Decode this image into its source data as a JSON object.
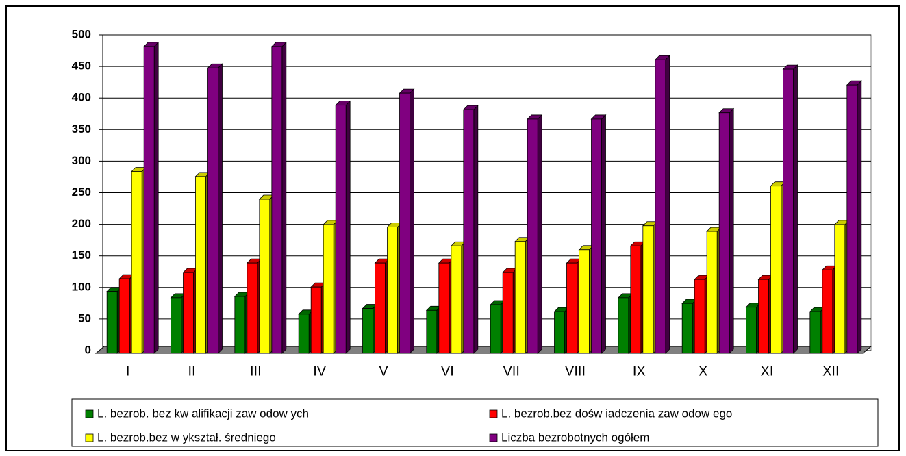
{
  "chart_data": {
    "type": "bar3d",
    "categories": [
      "I",
      "II",
      "III",
      "IV",
      "V",
      "VI",
      "VII",
      "VIII",
      "IX",
      "X",
      "XI",
      "XII"
    ],
    "series": [
      {
        "name": "L. bezrob. bez kw alifikacji zaw odow ych",
        "color": "#008000",
        "values": [
          98,
          88,
          90,
          62,
          71,
          68,
          77,
          66,
          88,
          79,
          73,
          66
        ]
      },
      {
        "name": "L. bezrob.bez dośw iadczenia zaw odow ego",
        "color": "#ff0000",
        "values": [
          118,
          128,
          143,
          105,
          143,
          143,
          128,
          143,
          170,
          117,
          117,
          132
        ]
      },
      {
        "name": "L. bezrob.bez w ykształ. średniego",
        "color": "#ffff00",
        "values": [
          288,
          280,
          244,
          204,
          200,
          170,
          177,
          164,
          202,
          193,
          265,
          204
        ]
      },
      {
        "name": "Liczba bezrobotnych ogółem",
        "color": "#800080",
        "values": [
          486,
          452,
          486,
          393,
          412,
          386,
          371,
          371,
          465,
          381,
          450,
          425
        ]
      }
    ],
    "ylim": [
      0,
      500
    ],
    "yticks": [
      0,
      50,
      100,
      150,
      200,
      250,
      300,
      350,
      400,
      450,
      500
    ],
    "grid": true
  }
}
